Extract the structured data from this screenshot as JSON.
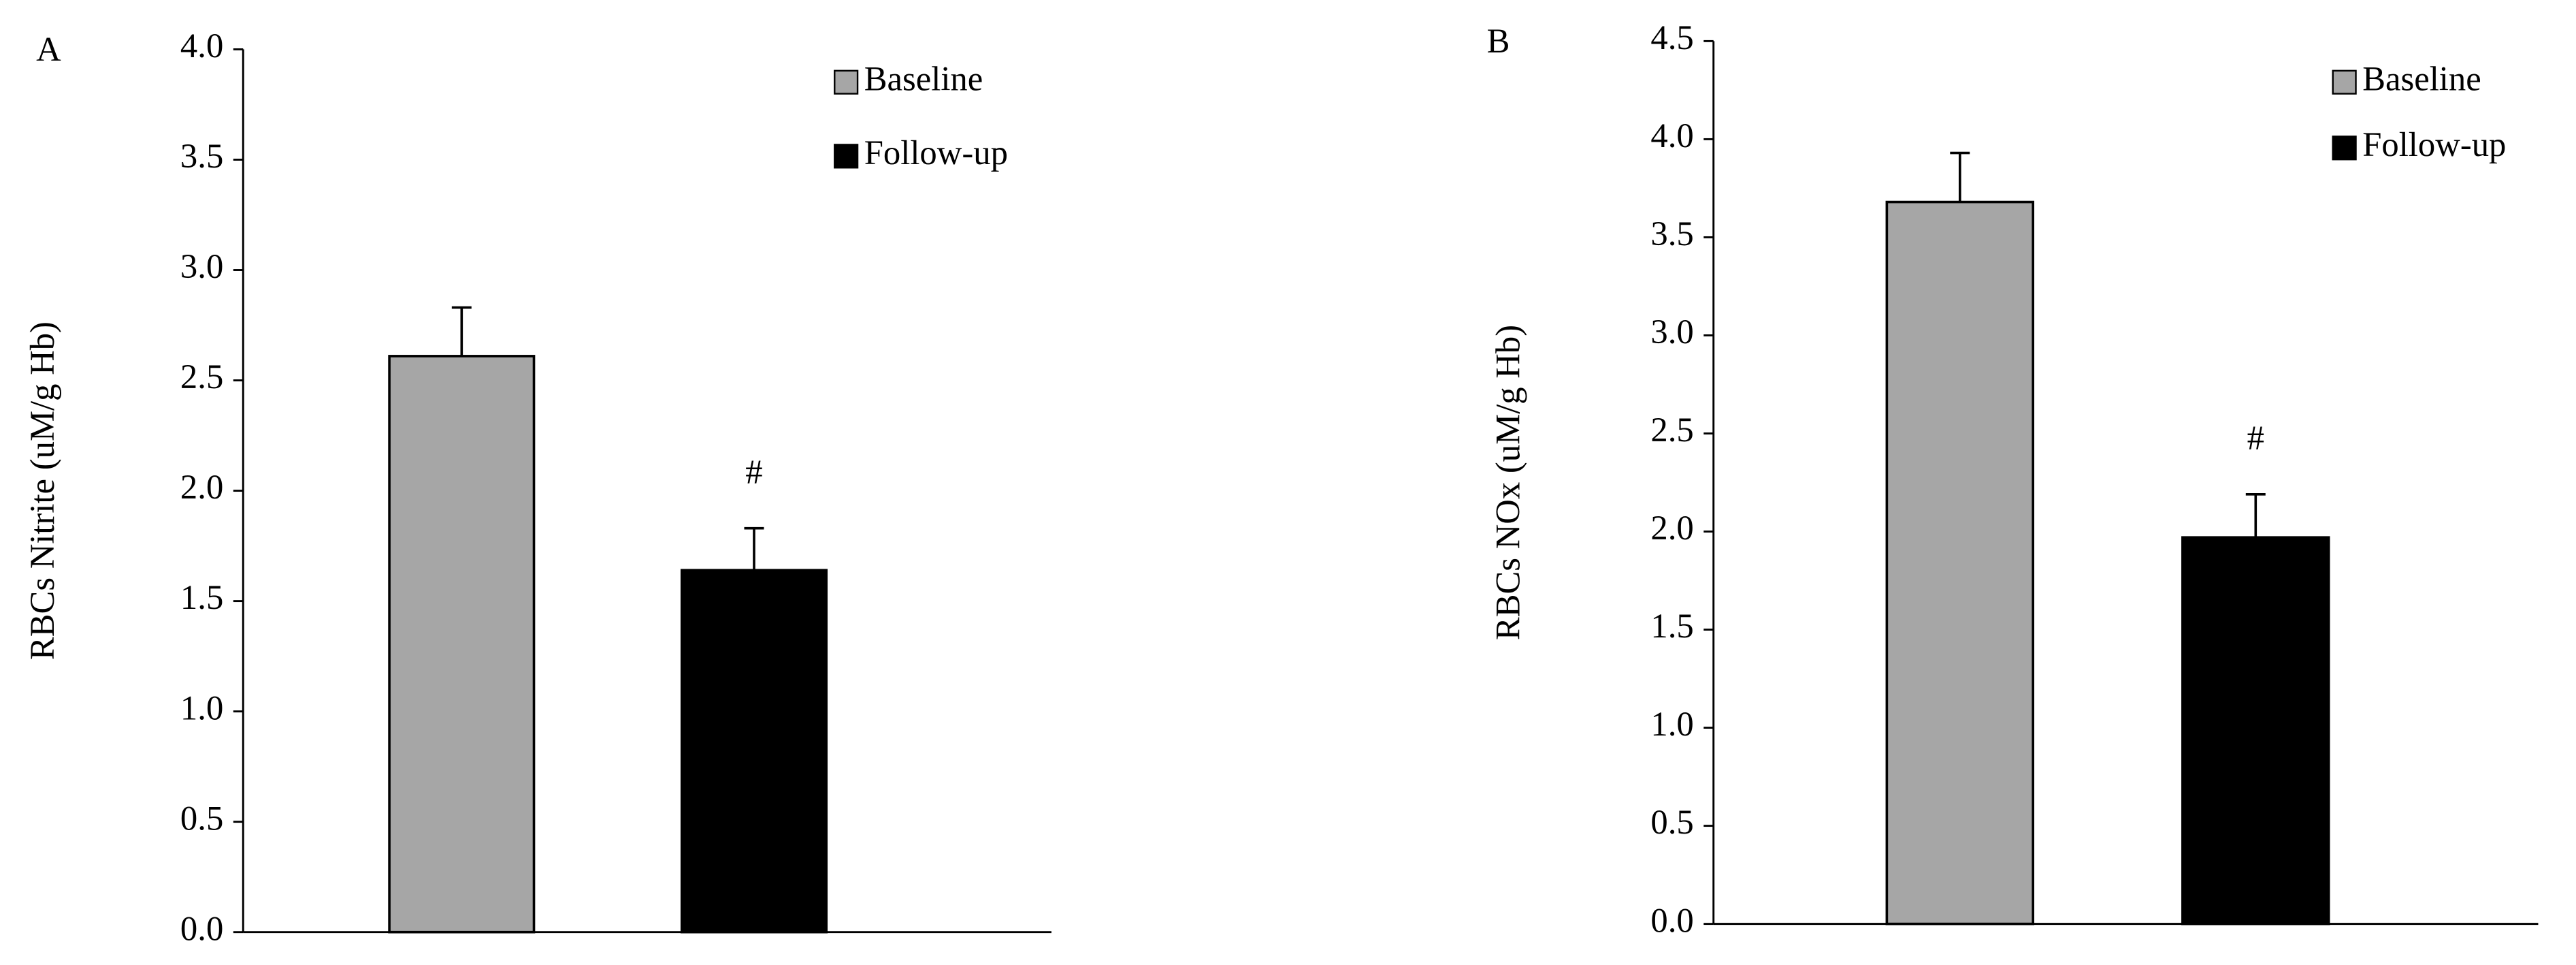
{
  "chart_data": [
    {
      "type": "bar",
      "panel": "A",
      "y_label": "RBCs Nitrite (uM/g Hb)",
      "categories": [
        null,
        null
      ],
      "series": [
        {
          "name": "Baseline",
          "color": "#a6a6a6",
          "values": [
            2.61,
            null
          ],
          "errors": [
            0.22,
            null
          ]
        },
        {
          "name": "Follow-up",
          "color": "#000000",
          "values": [
            null,
            1.64
          ],
          "errors": [
            null,
            0.19
          ],
          "annotation": "#"
        }
      ],
      "ylim": [
        0,
        4
      ],
      "yticks": [
        {
          "value": 0,
          "label": "0.0"
        },
        0.5,
        {
          "value": 1,
          "label": "1.0"
        },
        1.5,
        {
          "value": 2,
          "label": "2.0"
        },
        2.5,
        {
          "value": 3,
          "label": "3.0"
        },
        3.5,
        {
          "value": 4,
          "label": "4.0"
        }
      ],
      "legend": "top-right"
    },
    {
      "type": "bar",
      "panel": "B",
      "y_label": "RBCs NOx (uM/g Hb)",
      "categories": [
        null,
        null
      ],
      "series": [
        {
          "name": "Baseline",
          "color": "#a6a6a6",
          "values": [
            3.68,
            null
          ],
          "errors": [
            0.25,
            null
          ]
        },
        {
          "name": "Follow-up",
          "color": "#000000",
          "values": [
            null,
            1.97
          ],
          "errors": [
            null,
            0.22
          ],
          "annotation": "#"
        }
      ],
      "ylim": [
        0,
        4.5
      ],
      "yticks": [
        {
          "value": 0,
          "label": "0.0"
        },
        0.5,
        {
          "value": 1,
          "label": "1.0"
        },
        1.5,
        {
          "value": 2,
          "label": "2.0"
        },
        2.5,
        {
          "value": 3,
          "label": "3.0"
        },
        3.5,
        {
          "value": 4,
          "label": "4.0"
        },
        4.5
      ],
      "legend": "top-right"
    }
  ]
}
